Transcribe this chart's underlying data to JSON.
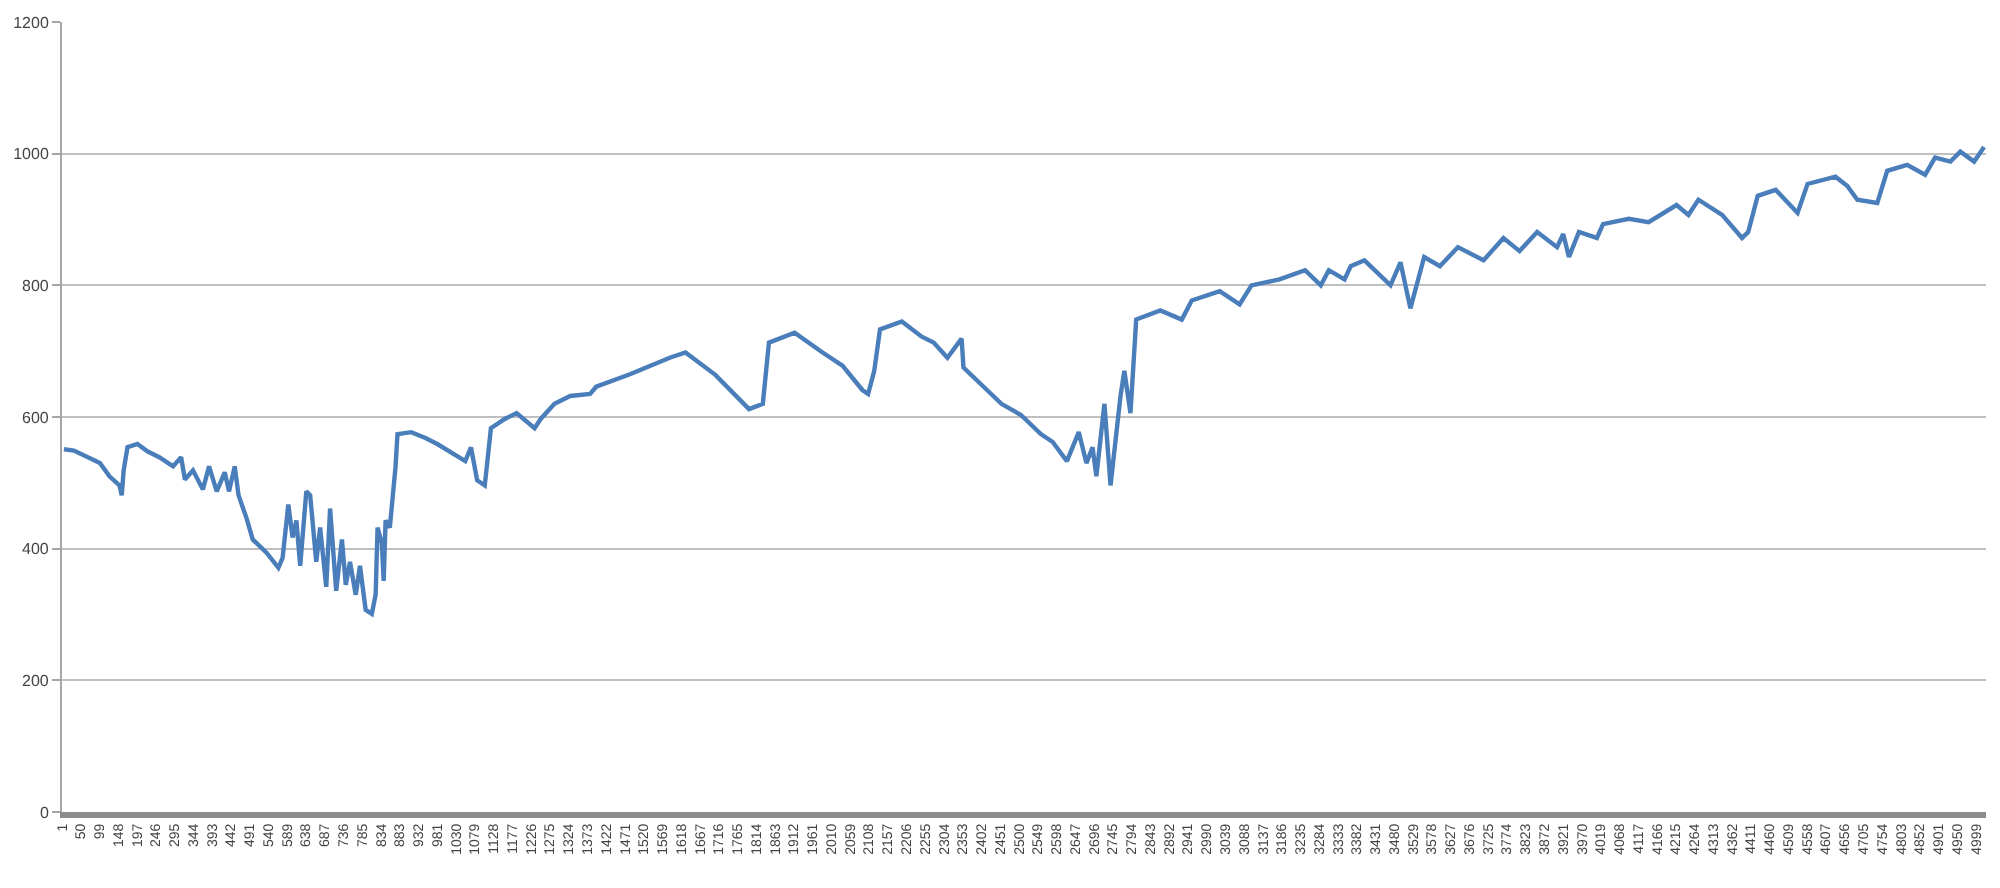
{
  "chart_data": {
    "type": "line",
    "color": "#4a7ebb",
    "x": [
      6,
      32,
      100,
      125,
      151,
      157,
      162,
      172,
      198,
      224,
      255,
      291,
      312,
      322,
      343,
      369,
      385,
      405,
      426,
      437,
      452,
      462,
      483,
      499,
      535,
      566,
      577,
      592,
      603,
      613,
      623,
      639,
      649,
      665,
      675,
      691,
      701,
      717,
      732,
      742,
      753,
      768,
      779,
      794,
      810,
      820,
      825,
      836,
      841,
      846,
      857,
      872,
      877,
      913,
      950,
      981,
      1054,
      1069,
      1085,
      1105,
      1121,
      1157,
      1188,
      1235,
      1251,
      1287,
      1328,
      1380,
      1396,
      1484,
      1588,
      1629,
      1707,
      1795,
      1831,
      1847,
      1914,
      1987,
      2039,
      2091,
      2106,
      2122,
      2137,
      2194,
      2246,
      2277,
      2313,
      2350,
      2355,
      2402,
      2454,
      2505,
      2557,
      2588,
      2625,
      2656,
      2676,
      2692,
      2702,
      2723,
      2739,
      2765,
      2775,
      2791,
      2806,
      2869,
      2925,
      2951,
      3024,
      3076,
      3107,
      3180,
      3247,
      3288,
      3309,
      3350,
      3366,
      3402,
      3470,
      3496,
      3522,
      3558,
      3599,
      3646,
      3713,
      3765,
      3807,
      3853,
      3905,
      3921,
      3936,
      3962,
      4009,
      4025,
      4092,
      4144,
      4217,
      4248,
      4274,
      4336,
      4388,
      4404,
      4429,
      4476,
      4533,
      4559,
      4632,
      4663,
      4689,
      4741,
      4767,
      4819,
      4866,
      4892,
      4932,
      4958,
      4994,
      5020
    ],
    "values": [
      551,
      549,
      530,
      510,
      496,
      481,
      519,
      554,
      559,
      548,
      539,
      525,
      539,
      505,
      519,
      490,
      525,
      487,
      516,
      487,
      525,
      481,
      446,
      414,
      394,
      371,
      386,
      467,
      417,
      443,
      374,
      487,
      481,
      380,
      432,
      342,
      461,
      336,
      414,
      345,
      380,
      330,
      374,
      307,
      301,
      330,
      432,
      409,
      351,
      443,
      432,
      525,
      574,
      577,
      568,
      559,
      533,
      554,
      504,
      496,
      583,
      597,
      606,
      583,
      597,
      620,
      632,
      635,
      646,
      665,
      690,
      698,
      664,
      612,
      620,
      713,
      728,
      698,
      678,
      641,
      635,
      670,
      733,
      745,
      722,
      713,
      690,
      719,
      675,
      649,
      620,
      603,
      574,
      562,
      533,
      577,
      530,
      554,
      510,
      620,
      496,
      632,
      670,
      606,
      748,
      762,
      748,
      777,
      791,
      771,
      800,
      809,
      823,
      800,
      823,
      809,
      829,
      838,
      800,
      835,
      765,
      843,
      829,
      858,
      838,
      872,
      852,
      881,
      858,
      878,
      843,
      881,
      872,
      893,
      901,
      896,
      922,
      907,
      930,
      907,
      872,
      881,
      936,
      945,
      910,
      954,
      965,
      951,
      930,
      925,
      974,
      983,
      968,
      994,
      988,
      1003,
      988,
      1010
    ],
    "xlim": [
      1,
      5025
    ],
    "xticks": [
      1,
      50,
      99,
      148,
      197,
      246,
      295,
      344,
      393,
      442,
      491,
      540,
      589,
      638,
      687,
      736,
      785,
      834,
      883,
      932,
      981,
      1030,
      1079,
      1128,
      1177,
      1226,
      1275,
      1324,
      1373,
      1422,
      1471,
      1520,
      1569,
      1618,
      1667,
      1716,
      1765,
      1814,
      1863,
      1912,
      1961,
      2010,
      2059,
      2108,
      2157,
      2206,
      2255,
      2304,
      2353,
      2402,
      2451,
      2500,
      2549,
      2598,
      2647,
      2696,
      2745,
      2794,
      2843,
      2892,
      2941,
      2990,
      3039,
      3088,
      3137,
      3186,
      3235,
      3284,
      3333,
      3382,
      3431,
      3480,
      3529,
      3578,
      3627,
      3676,
      3725,
      3774,
      3823,
      3872,
      3921,
      3970,
      4019,
      4068,
      4117,
      4166,
      4215,
      4264,
      4313,
      4362,
      4411,
      4460,
      4509,
      4558,
      4607,
      4656,
      4705,
      4754,
      4803,
      4852,
      4901,
      4950,
      4999
    ],
    "ylim": [
      0,
      1200
    ],
    "yticks": [
      0,
      200,
      400,
      600,
      800,
      1000,
      1200
    ],
    "grid": "y",
    "marker": "none",
    "line_style": "solid"
  }
}
